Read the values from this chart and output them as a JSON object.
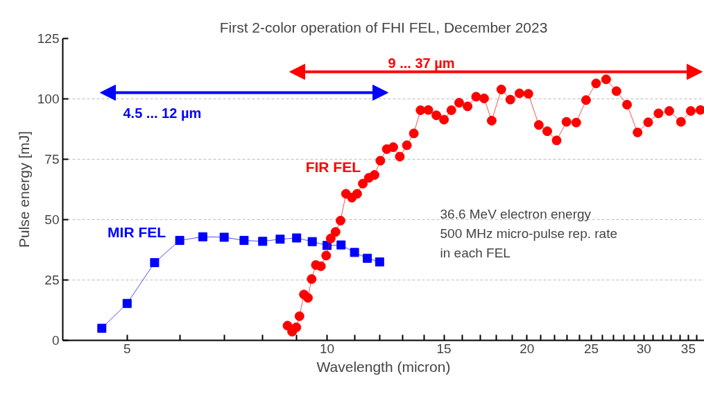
{
  "chart_data": {
    "type": "line",
    "title": "First 2-color operation of FHI FEL, December 2023",
    "xlabel": "Wavelength (micron)",
    "ylabel": "Pulse energy [mJ]",
    "log": "x",
    "xlim": [
      4,
      37
    ],
    "ylim": [
      0,
      125
    ],
    "xticks": [
      5,
      {
        "value": 6,
        "label": null
      },
      {
        "value": 7,
        "label": null
      },
      {
        "value": 8,
        "label": null
      },
      {
        "value": 9,
        "label": null
      },
      10,
      {
        "value": 11,
        "label": null
      },
      {
        "value": 12,
        "label": null
      },
      {
        "value": 13,
        "label": null
      },
      {
        "value": 14,
        "label": null
      },
      15,
      {
        "value": 16,
        "label": null
      },
      {
        "value": 17,
        "label": null
      },
      {
        "value": 18,
        "label": null
      },
      {
        "value": 19,
        "label": null
      },
      20,
      {
        "value": 21,
        "label": null
      },
      {
        "value": 22,
        "label": null
      },
      {
        "value": 23,
        "label": null
      },
      {
        "value": 24,
        "label": null
      },
      25,
      {
        "value": 26,
        "label": null
      },
      {
        "value": 27,
        "label": null
      },
      {
        "value": 28,
        "label": null
      },
      {
        "value": 29,
        "label": null
      },
      30,
      {
        "value": 31,
        "label": null
      },
      {
        "value": 32,
        "label": null
      },
      {
        "value": 33,
        "label": null
      },
      {
        "value": 34,
        "label": null
      },
      35,
      {
        "value": 36,
        "label": null
      }
    ],
    "yticks": [
      0,
      25,
      50,
      75,
      100,
      125
    ],
    "grid": "y",
    "line_style": "solid",
    "series": [
      {
        "name": "MIR FEL",
        "color": "#0000ff",
        "marker": "square",
        "x": [
          4.58,
          5.0,
          5.5,
          6.0,
          6.5,
          7.0,
          7.5,
          8.0,
          8.5,
          9.0,
          9.5,
          10.0,
          10.5,
          11.0,
          11.5,
          12.0
        ],
        "values": [
          5,
          15.3,
          32.2,
          41.4,
          42.9,
          42.7,
          41.4,
          41.0,
          41.9,
          42.4,
          40.9,
          39.3,
          39.5,
          36.4,
          34.0,
          32.5
        ]
      },
      {
        "name": "FIR FEL",
        "color": "#ff0000",
        "marker": "circle",
        "x": [
          8.72,
          8.86,
          8.99,
          9.09,
          9.23,
          9.36,
          9.48,
          9.62,
          9.79,
          9.97,
          10.13,
          10.3,
          10.48,
          10.68,
          10.9,
          11.1,
          11.32,
          11.56,
          11.79,
          12.03,
          12.3,
          12.58,
          12.87,
          13.19,
          13.51,
          13.83,
          14.21,
          14.61,
          15.0,
          15.39,
          15.81,
          16.28,
          16.77,
          17.24,
          17.7,
          18.3,
          18.88,
          19.49,
          20.1,
          20.84,
          21.46,
          22.17,
          22.94,
          23.73,
          24.55,
          25.42,
          26.32,
          27.28,
          28.3,
          29.35,
          30.45,
          31.56,
          32.76,
          34.12,
          35.3,
          36.5
        ],
        "values": [
          6.1,
          3.6,
          5.4,
          10.0,
          19.0,
          17.6,
          25.4,
          31.2,
          30.7,
          35.1,
          42.2,
          44.9,
          49.6,
          60.7,
          59.1,
          60.7,
          64.9,
          67.3,
          68.5,
          74.4,
          79.2,
          80.0,
          76.1,
          80.8,
          85.7,
          95.3,
          95.4,
          93.2,
          91.4,
          95.3,
          98.4,
          96.9,
          100.9,
          100.2,
          91.0,
          103.9,
          99.7,
          102.3,
          102.1,
          89.2,
          86.6,
          82.8,
          90.5,
          90.2,
          99.5,
          106.4,
          108.1,
          103.2,
          97.6,
          86.1,
          90.3,
          94.0,
          95.0,
          90.5,
          95.0,
          95.4
        ]
      }
    ],
    "annotations": [
      "4.5 ... 12 µm",
      "9 ... 37 µm",
      "36.6 MeV electron energy\n500 MHz micro-pulse rep. rate\nin each FEL"
    ]
  }
}
